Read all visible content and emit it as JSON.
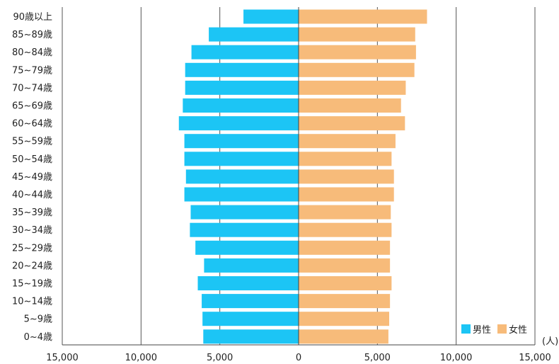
{
  "chart_data": {
    "type": "bar",
    "orientation": "horizontal",
    "layout": "population-pyramid",
    "categories": [
      "90歳以上",
      "85~89歳",
      "80~84歳",
      "75~79歳",
      "70~74歳",
      "65~69歳",
      "60~64歳",
      "55~59歳",
      "50~54歳",
      "45~49歳",
      "40~44歳",
      "35~39歳",
      "30~34歳",
      "25~29歳",
      "20~24歳",
      "15~19歳",
      "10~14歳",
      "5~9歳",
      "0~4歳"
    ],
    "series": [
      {
        "name": "男性",
        "side": "left",
        "color": "#1cc5f5",
        "values": [
          3500,
          5700,
          6800,
          7200,
          7200,
          7350,
          7600,
          7250,
          7250,
          7150,
          7250,
          6850,
          6900,
          6550,
          6000,
          6400,
          6150,
          6100,
          6050
        ]
      },
      {
        "name": "女性",
        "side": "right",
        "color": "#f7bb7a",
        "values": [
          8150,
          7400,
          7450,
          7350,
          6800,
          6500,
          6750,
          6150,
          5900,
          6050,
          6050,
          5850,
          5900,
          5800,
          5800,
          5900,
          5800,
          5750,
          5700
        ]
      }
    ],
    "xlim": [
      -15000,
      15000
    ],
    "xticks": [
      "15,000",
      "10,000",
      "5,000",
      "0",
      "5,000",
      "10,000",
      "15,000"
    ],
    "xtick_values": [
      -15000,
      -10000,
      -5000,
      0,
      5000,
      10000,
      15000
    ],
    "unit_label": "(人)",
    "grid": "vertical",
    "legend_position": "bottom-right"
  }
}
